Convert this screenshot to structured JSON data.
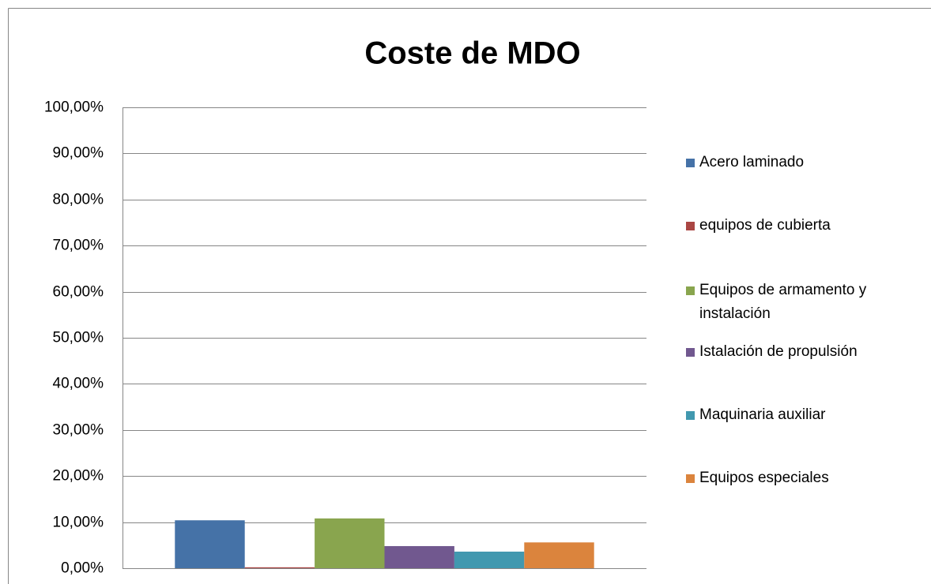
{
  "chart_data": {
    "type": "bar",
    "title": "Coste de MDO",
    "categories": [
      null
    ],
    "series": [
      {
        "name": "Acero laminado",
        "color": "#4572a7",
        "values": [
          10.4
        ]
      },
      {
        "name": "equipos de cubierta",
        "color": "#aa4643",
        "values": [
          0.2
        ]
      },
      {
        "name": "Equipos de armamento y instalación",
        "color": "#89a54e",
        "values": [
          10.8
        ]
      },
      {
        "name": "Istalación de propulsión",
        "color": "#71588f",
        "values": [
          4.8
        ]
      },
      {
        "name": "Maquinaria auxiliar",
        "color": "#4198af",
        "values": [
          3.6
        ]
      },
      {
        "name": "Equipos especiales",
        "color": "#db843d",
        "values": [
          5.6
        ]
      }
    ],
    "ylim": [
      0,
      100
    ],
    "yticks": [
      {
        "value": 0,
        "label": "0,00%"
      },
      {
        "value": 10,
        "label": "10,00%"
      },
      {
        "value": 20,
        "label": "20,00%"
      },
      {
        "value": 30,
        "label": "30,00%"
      },
      {
        "value": 40,
        "label": "40,00%"
      },
      {
        "value": 50,
        "label": "50,00%"
      },
      {
        "value": 60,
        "label": "60,00%"
      },
      {
        "value": 70,
        "label": "70,00%"
      },
      {
        "value": 80,
        "label": "80,00%"
      },
      {
        "value": 90,
        "label": "90,00%"
      },
      {
        "value": 100,
        "label": "100,00%"
      }
    ],
    "grid": true,
    "legend": "right"
  }
}
